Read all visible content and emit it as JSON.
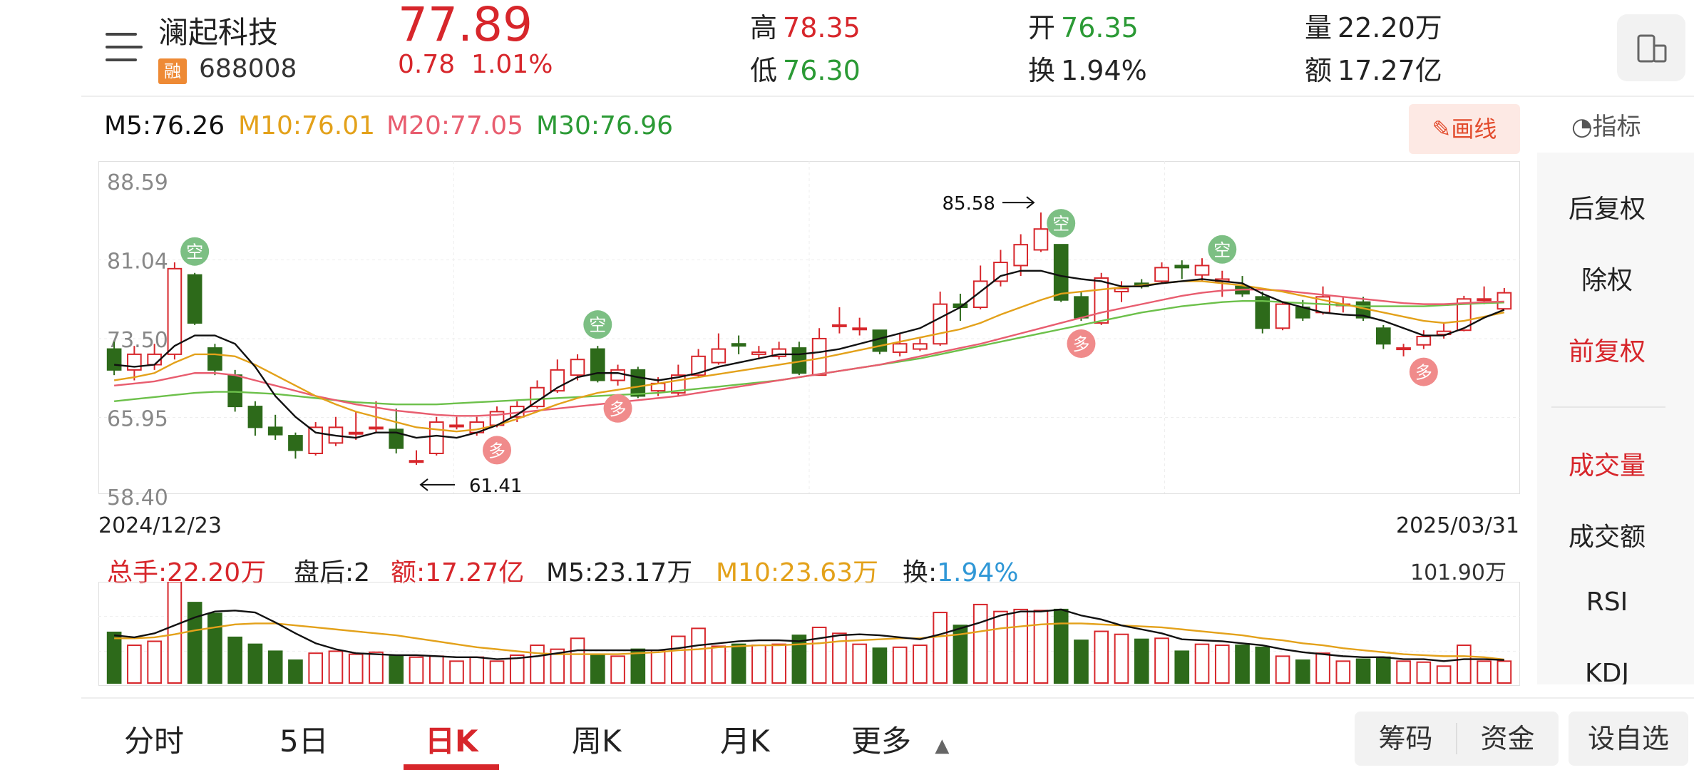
{
  "stock": {
    "name": "澜起科技",
    "tag": "融",
    "code": "688008",
    "price": "77.89",
    "change": "0.78",
    "change_pct": "1.01%"
  },
  "quote": {
    "high_label": "高",
    "high": "78.35",
    "low_label": "低",
    "low": "76.30",
    "open_label": "开",
    "open": "76.35",
    "turnover_label": "换",
    "turnover": "1.94%",
    "volume_label": "量",
    "volume": "22.20万",
    "amount_label": "额",
    "amount": "17.27亿"
  },
  "ma_line": {
    "m5": "M5:76.26",
    "m10": "M10:76.01",
    "m20": "M20:77.05",
    "m30": "M30:76.96"
  },
  "toolbar": {
    "draw": "画线",
    "indicator": "指标"
  },
  "right_panel": [
    "后复权",
    "除权",
    "前复权",
    "成交量",
    "成交额",
    "RSI",
    "KDJ"
  ],
  "vol_legend": {
    "total": "总手:22.20万",
    "after": "盘后:2",
    "amount": "额:17.27亿",
    "m5": "M5:23.17万",
    "m10": "M10:23.63万",
    "turn_label": "换:",
    "turn": "1.94%",
    "vmax": "101.90万"
  },
  "tabs": [
    "分时",
    "5日",
    "日K",
    "周K",
    "月K",
    "更多"
  ],
  "buttons": {
    "chips": "筹码",
    "funds": "资金",
    "add_watch": "设自选"
  },
  "colors": {
    "up": "#d7262b",
    "down": "#2d6a1a",
    "ma5": "#111111",
    "ma10": "#e3a11a",
    "ma20": "#e85d6f",
    "ma30": "#6cc04a"
  },
  "chart_data": {
    "type": "candlestick",
    "y_ticks": [
      "88.59",
      "81.04",
      "73.50",
      "65.95",
      "58.40"
    ],
    "ylim": [
      58.4,
      88.59
    ],
    "x_start": "2024/12/23",
    "x_end": "2025/03/31",
    "annotations": {
      "max": "85.58",
      "min": "61.41"
    },
    "signals": {
      "short": "空",
      "long": "多"
    },
    "candles": [
      [
        72.5,
        70.5,
        73.2,
        70.0
      ],
      [
        70.5,
        72.0,
        72.8,
        69.5
      ],
      [
        71.0,
        72.0,
        73.0,
        70.5
      ],
      [
        72.0,
        80.2,
        80.8,
        71.5
      ],
      [
        79.6,
        75.0,
        79.8,
        74.8
      ],
      [
        72.6,
        70.5,
        73.0,
        70.0
      ],
      [
        70.0,
        67.0,
        70.5,
        66.5
      ],
      [
        67.0,
        65.0,
        67.5,
        64.2
      ],
      [
        65.0,
        64.3,
        66.2,
        63.8
      ],
      [
        64.2,
        62.8,
        64.5,
        62.0
      ],
      [
        62.5,
        65.0,
        65.5,
        62.3
      ],
      [
        63.5,
        65.0,
        66.0,
        63.2
      ],
      [
        64.5,
        64.5,
        66.5,
        63.8
      ],
      [
        65.0,
        65.0,
        67.5,
        64.5
      ],
      [
        64.8,
        63.0,
        66.8,
        62.5
      ],
      [
        61.8,
        61.8,
        62.8,
        61.41
      ],
      [
        62.5,
        65.5,
        66.0,
        62.3
      ],
      [
        65.2,
        65.2,
        66.0,
        64.8
      ],
      [
        64.5,
        65.5,
        66.0,
        64.2
      ],
      [
        65.2,
        66.5,
        67.0,
        65.0
      ],
      [
        66.0,
        67.0,
        67.5,
        65.5
      ],
      [
        67.0,
        68.8,
        69.5,
        66.8
      ],
      [
        68.5,
        70.5,
        71.5,
        68.3
      ],
      [
        70.0,
        71.5,
        72.0,
        69.5
      ],
      [
        72.5,
        69.5,
        72.8,
        69.3
      ],
      [
        69.5,
        70.5,
        71.0,
        69.0
      ],
      [
        70.5,
        68.0,
        70.8,
        67.8
      ],
      [
        68.5,
        69.2,
        69.8,
        68.0
      ],
      [
        68.3,
        70.0,
        71.0,
        68.0
      ],
      [
        70.0,
        71.8,
        72.5,
        69.8
      ],
      [
        71.2,
        72.5,
        74.0,
        71.0
      ],
      [
        73.0,
        72.8,
        73.8,
        72.0
      ],
      [
        72.0,
        72.2,
        72.8,
        71.5
      ],
      [
        71.8,
        72.5,
        73.2,
        71.5
      ],
      [
        72.6,
        70.2,
        73.2,
        70.0
      ],
      [
        70.0,
        73.5,
        74.5,
        70.0
      ],
      [
        74.8,
        74.8,
        76.5,
        74.0
      ],
      [
        74.5,
        74.5,
        75.5,
        73.8
      ],
      [
        74.3,
        72.3,
        74.3,
        72.0
      ],
      [
        72.2,
        73.0,
        74.0,
        71.8
      ],
      [
        72.5,
        73.0,
        73.5,
        72.3
      ],
      [
        73.0,
        76.8,
        78.0,
        72.8
      ],
      [
        76.8,
        76.5,
        77.8,
        75.2
      ],
      [
        76.5,
        79.0,
        80.5,
        76.3
      ],
      [
        79.0,
        80.8,
        82.0,
        78.5
      ],
      [
        80.5,
        82.5,
        83.5,
        79.5
      ],
      [
        82.0,
        84.0,
        85.58,
        81.8
      ],
      [
        82.5,
        77.2,
        82.5,
        77.0
      ],
      [
        77.5,
        75.5,
        78.0,
        75.2
      ],
      [
        75.0,
        79.3,
        79.8,
        74.8
      ],
      [
        78.0,
        78.3,
        79.0,
        77.0
      ],
      [
        78.8,
        78.5,
        79.2,
        78.3
      ],
      [
        79.0,
        80.3,
        80.8,
        78.8
      ],
      [
        80.5,
        80.3,
        81.0,
        79.2
      ],
      [
        79.6,
        80.5,
        81.2,
        79.0
      ],
      [
        79.0,
        79.2,
        80.0,
        77.5
      ],
      [
        78.5,
        77.8,
        79.5,
        77.5
      ],
      [
        77.5,
        74.5,
        78.0,
        74.0
      ],
      [
        74.5,
        76.8,
        77.0,
        74.3
      ],
      [
        76.5,
        75.5,
        77.2,
        75.2
      ],
      [
        76.0,
        77.5,
        78.5,
        75.8
      ],
      [
        76.8,
        76.8,
        77.5,
        76.0
      ],
      [
        77.0,
        75.5,
        77.5,
        75.2
      ],
      [
        74.5,
        73.0,
        74.8,
        72.5
      ],
      [
        72.5,
        72.6,
        73.0,
        71.8
      ],
      [
        72.9,
        73.7,
        74.3,
        72.5
      ],
      [
        73.9,
        74.2,
        75.0,
        73.5
      ],
      [
        74.3,
        77.3,
        77.6,
        74.2
      ],
      [
        77.3,
        77.3,
        78.5,
        76.8
      ],
      [
        76.35,
        77.89,
        78.35,
        76.3
      ]
    ],
    "volumes": [
      51.0,
      38.0,
      42.0,
      102.0,
      81.0,
      70.0,
      46.0,
      39.0,
      32.0,
      23.0,
      30.0,
      32.0,
      29.0,
      31.0,
      28.0,
      26.0,
      27.0,
      22.0,
      26.0,
      22.0,
      28.0,
      38.0,
      34.0,
      45.0,
      28.0,
      27.0,
      34.0,
      33.0,
      47.0,
      55.0,
      37.0,
      39.0,
      38.0,
      39.0,
      48.0,
      56.0,
      50.0,
      39.0,
      35.0,
      36.0,
      38.0,
      71.0,
      58.0,
      79.0,
      72.0,
      74.0,
      73.0,
      74.0,
      43.0,
      52.0,
      49.0,
      44.0,
      45.0,
      32.0,
      39.0,
      38.0,
      38.0,
      36.0,
      27.0,
      23.0,
      30.0,
      22.0,
      24.0,
      26.0,
      22.0,
      21.0,
      17.0,
      38.0,
      22.0,
      22.0
    ],
    "ma5": [
      71.0,
      70.8,
      71.0,
      72.8,
      73.8,
      73.8,
      73.0,
      70.8,
      68.0,
      66.0,
      64.5,
      64.2,
      64.0,
      64.5,
      64.5,
      64.0,
      64.2,
      64.0,
      64.5,
      65.2,
      66.2,
      67.5,
      68.8,
      69.8,
      70.2,
      70.2,
      69.8,
      69.5,
      69.8,
      70.2,
      70.8,
      71.2,
      71.6,
      72.0,
      72.0,
      72.2,
      72.5,
      73.0,
      73.5,
      74.0,
      74.5,
      75.5,
      76.5,
      78.0,
      79.5,
      80.0,
      80.0,
      79.5,
      79.2,
      79.0,
      78.5,
      78.5,
      78.8,
      79.0,
      79.2,
      79.0,
      78.8,
      77.8,
      77.0,
      76.5,
      76.0,
      75.8,
      75.7,
      75.2,
      74.5,
      73.8,
      73.8,
      74.5,
      75.5,
      76.26
    ],
    "ma10": [
      69.5,
      69.8,
      70.2,
      71.2,
      72.0,
      72.0,
      71.8,
      71.0,
      70.0,
      69.0,
      68.0,
      67.2,
      66.5,
      66.0,
      65.5,
      65.0,
      64.8,
      64.6,
      64.8,
      65.2,
      65.8,
      66.5,
      67.2,
      67.8,
      68.3,
      68.6,
      68.9,
      69.2,
      69.5,
      69.8,
      70.1,
      70.4,
      70.7,
      71.0,
      71.3,
      71.6,
      72.0,
      72.4,
      72.8,
      73.2,
      73.6,
      74.0,
      74.4,
      75.0,
      75.8,
      76.5,
      77.2,
      77.8,
      78.0,
      78.2,
      78.4,
      78.6,
      78.8,
      79.0,
      79.0,
      78.8,
      78.6,
      78.3,
      78.0,
      77.6,
      77.2,
      76.8,
      76.4,
      76.0,
      75.6,
      75.2,
      75.0,
      75.2,
      75.6,
      76.01
    ],
    "ma20": [
      69.0,
      69.2,
      69.4,
      69.8,
      70.2,
      70.2,
      70.0,
      69.5,
      69.0,
      68.5,
      68.0,
      67.6,
      67.2,
      66.9,
      66.6,
      66.4,
      66.2,
      66.1,
      66.1,
      66.2,
      66.4,
      66.6,
      66.8,
      67.0,
      67.2,
      67.4,
      67.6,
      67.8,
      68.0,
      68.3,
      68.6,
      68.9,
      69.2,
      69.5,
      69.8,
      70.1,
      70.4,
      70.7,
      71.0,
      71.4,
      71.8,
      72.2,
      72.6,
      73.0,
      73.5,
      74.0,
      74.5,
      75.0,
      75.5,
      76.0,
      76.4,
      76.8,
      77.2,
      77.6,
      77.9,
      78.1,
      78.2,
      78.2,
      78.1,
      77.9,
      77.7,
      77.5,
      77.3,
      77.1,
      76.9,
      76.8,
      76.8,
      76.9,
      77.0,
      77.05
    ],
    "ma30": [
      67.5,
      67.7,
      67.9,
      68.1,
      68.3,
      68.4,
      68.4,
      68.3,
      68.2,
      68.0,
      67.8,
      67.6,
      67.4,
      67.3,
      67.2,
      67.2,
      67.2,
      67.3,
      67.4,
      67.5,
      67.6,
      67.7,
      67.8,
      67.9,
      68.0,
      68.1,
      68.2,
      68.3,
      68.5,
      68.7,
      68.9,
      69.1,
      69.3,
      69.5,
      69.8,
      70.1,
      70.4,
      70.7,
      71.0,
      71.3,
      71.6,
      72.0,
      72.4,
      72.8,
      73.2,
      73.6,
      74.0,
      74.4,
      74.8,
      75.2,
      75.6,
      76.0,
      76.3,
      76.6,
      76.8,
      77.0,
      77.1,
      77.1,
      77.0,
      76.9,
      76.8,
      76.7,
      76.6,
      76.6,
      76.6,
      76.6,
      76.7,
      76.8,
      76.9,
      76.96
    ],
    "vol_ma5": [
      48,
      46,
      50,
      58,
      66,
      72,
      73,
      71,
      61,
      50,
      40,
      34,
      30,
      29,
      28,
      28,
      27,
      26,
      26,
      24,
      25,
      27,
      30,
      33,
      33,
      33,
      33,
      33,
      35,
      38,
      40,
      42,
      43,
      43,
      42,
      45,
      48,
      49,
      48,
      46,
      44,
      49,
      55,
      61,
      68,
      72,
      72,
      74,
      68,
      64,
      58,
      54,
      50,
      44,
      43,
      42,
      40,
      38,
      34,
      31,
      29,
      27,
      26,
      26,
      24,
      24,
      22,
      24,
      24,
      23.17
    ],
    "vol_ma10": [
      45,
      45,
      46,
      49,
      53,
      56,
      59,
      60,
      60,
      58,
      56,
      54,
      52,
      50,
      48,
      45,
      42,
      39,
      36,
      34,
      32,
      30,
      29,
      29,
      29,
      29,
      30,
      31,
      33,
      34,
      36,
      37,
      38,
      38,
      39,
      40,
      42,
      43,
      44,
      45,
      45,
      47,
      49,
      52,
      55,
      57,
      59,
      60,
      60,
      59,
      58,
      57,
      56,
      54,
      52,
      50,
      48,
      45,
      43,
      40,
      38,
      35,
      33,
      31,
      29,
      28,
      27,
      27,
      26,
      23.63
    ],
    "signals_at": [
      {
        "i": 4,
        "kind": "short"
      },
      {
        "i": 19,
        "kind": "long"
      },
      {
        "i": 24,
        "kind": "short"
      },
      {
        "i": 25,
        "kind": "long"
      },
      {
        "i": 47,
        "kind": "short"
      },
      {
        "i": 48,
        "kind": "long"
      },
      {
        "i": 55,
        "kind": "short"
      },
      {
        "i": 65,
        "kind": "long"
      }
    ]
  }
}
